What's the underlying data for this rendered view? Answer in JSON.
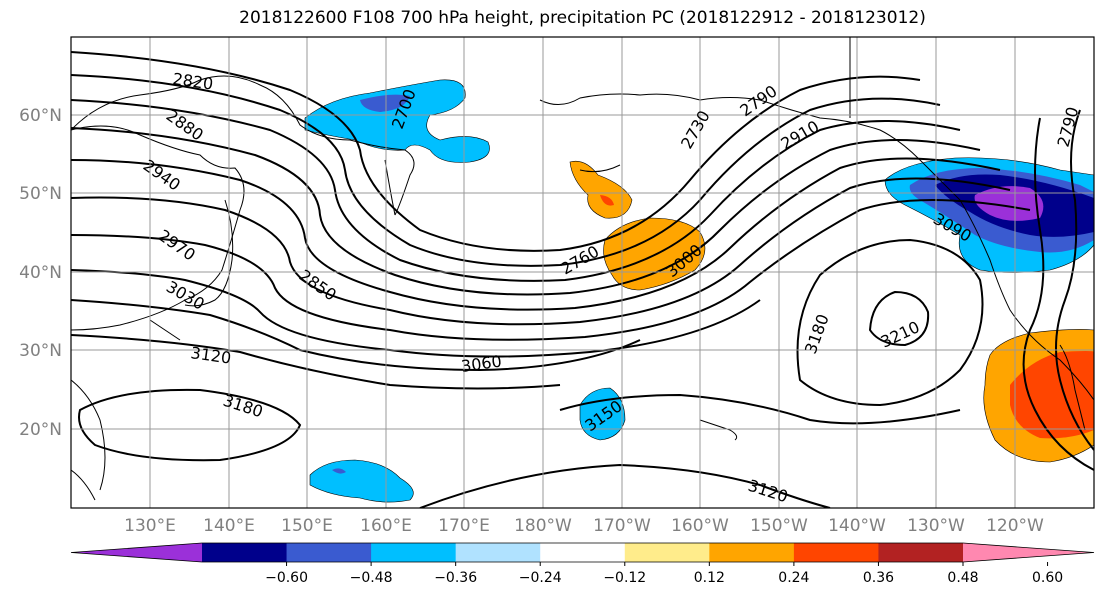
{
  "title": "2018122600 F108 700 hPa height, precipitation PC (2018122912 - 2018123012)",
  "lat_labels": [
    "60°N",
    "50°N",
    "40°N",
    "30°N",
    "20°N"
  ],
  "lon_labels": [
    "130°E",
    "140°E",
    "150°E",
    "160°E",
    "170°E",
    "180°W",
    "170°W",
    "160°W",
    "150°W",
    "140°W",
    "130°W",
    "120°W"
  ],
  "contour_labels": [
    "2820",
    "2880",
    "2940",
    "2970",
    "3030",
    "3120",
    "3180",
    "2850",
    "2760",
    "3000",
    "2700",
    "2730",
    "2790",
    "2910",
    "3060",
    "3090",
    "2790",
    "3180",
    "3210",
    "3150",
    "3120"
  ],
  "colorbar": {
    "ticks": [
      "−0.60",
      "−0.48",
      "−0.36",
      "−0.24",
      "−0.12",
      "0.12",
      "0.24",
      "0.36",
      "0.48",
      "0.60"
    ],
    "colors": [
      "#9b30d9",
      "#00008b",
      "#3a5bd0",
      "#00bfff",
      "#b0e2ff",
      "#ffffff",
      "#ffec8b",
      "#ffa500",
      "#ff4500",
      "#b22222",
      "#ff88b0"
    ]
  }
}
